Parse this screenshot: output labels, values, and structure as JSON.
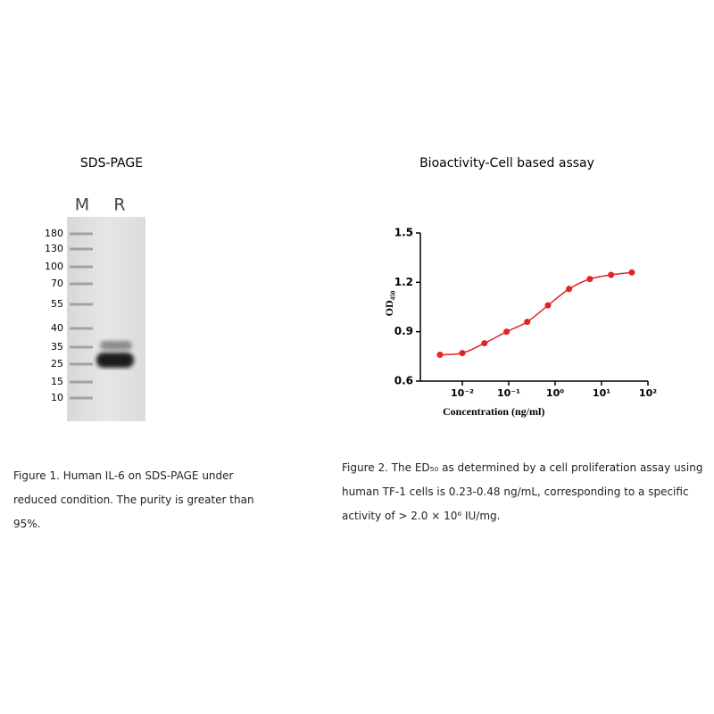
{
  "gel": {
    "title": "SDS-PAGE",
    "lanes": [
      "M",
      "R"
    ],
    "markers": [
      180,
      130,
      100,
      70,
      55,
      40,
      35,
      25,
      15,
      10
    ],
    "caption": "Figure 1. Human IL-6 on SDS-PAGE under reduced condition. The purity is greater than 95%."
  },
  "chart_data": {
    "type": "scatter",
    "title": "Bioactivity-Cell based assay",
    "x_label": "Concentration (ng/ml)",
    "y_label": "OD₄₅₀",
    "x": [
      0.0033,
      0.01,
      0.03,
      0.09,
      0.25,
      0.7,
      2,
      5.6,
      16,
      45
    ],
    "values": [
      0.76,
      0.77,
      0.83,
      0.9,
      0.96,
      1.06,
      1.16,
      1.22,
      1.245,
      1.26
    ],
    "errors": [
      0.01,
      0.012,
      0.01,
      0.01,
      0.015,
      0.01,
      0.02,
      0.01,
      0.015,
      0.01
    ],
    "color": "#e02424",
    "xscale": "log",
    "xlim": [
      0.001,
      100
    ],
    "xticks": [
      {
        "value": 0.01,
        "label": "10⁻²"
      },
      {
        "value": 0.1,
        "label": "10⁻¹"
      },
      {
        "value": 1,
        "label": "10⁰"
      },
      {
        "value": 10,
        "label": "10¹"
      },
      {
        "value": 100,
        "label": "10²"
      }
    ],
    "ylim": [
      0.6,
      1.5
    ],
    "yticks": [
      0.6,
      0.9,
      1.2,
      1.5
    ],
    "caption": "Figure 2. The ED₅₀ as determined by a cell proliferation assay using human TF-1 cells is 0.23-0.48 ng/mL, corresponding to a specific activity of > 2.0 × 10⁶ IU/mg."
  }
}
